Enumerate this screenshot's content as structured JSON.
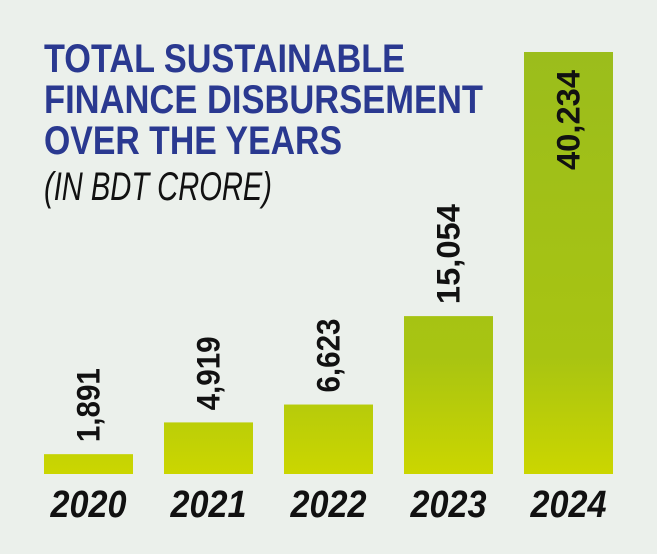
{
  "chart_data": {
    "type": "bar",
    "title_lines": [
      "TOTAL SUSTAINABLE",
      "FINANCE DISBURSEMENT",
      "OVER THE YEARS"
    ],
    "subtitle": "(IN BDT CRORE)",
    "categories": [
      "2020",
      "2021",
      "2022",
      "2023",
      "2024"
    ],
    "values": [
      1891,
      4919,
      6623,
      15054,
      40234
    ],
    "value_labels": [
      "1,891",
      "4,919",
      "6,623",
      "15,054",
      "40,234"
    ],
    "xlabel": "",
    "ylabel": "",
    "ylim": [
      0,
      40234
    ],
    "grid": false,
    "colors": {
      "background": "#ebf0eb",
      "title": "#2a3990",
      "bar_top": "#9bbd1c",
      "bar_bottom": "#cbd600",
      "label": "#111111",
      "label_inside": "#ffffff"
    }
  }
}
